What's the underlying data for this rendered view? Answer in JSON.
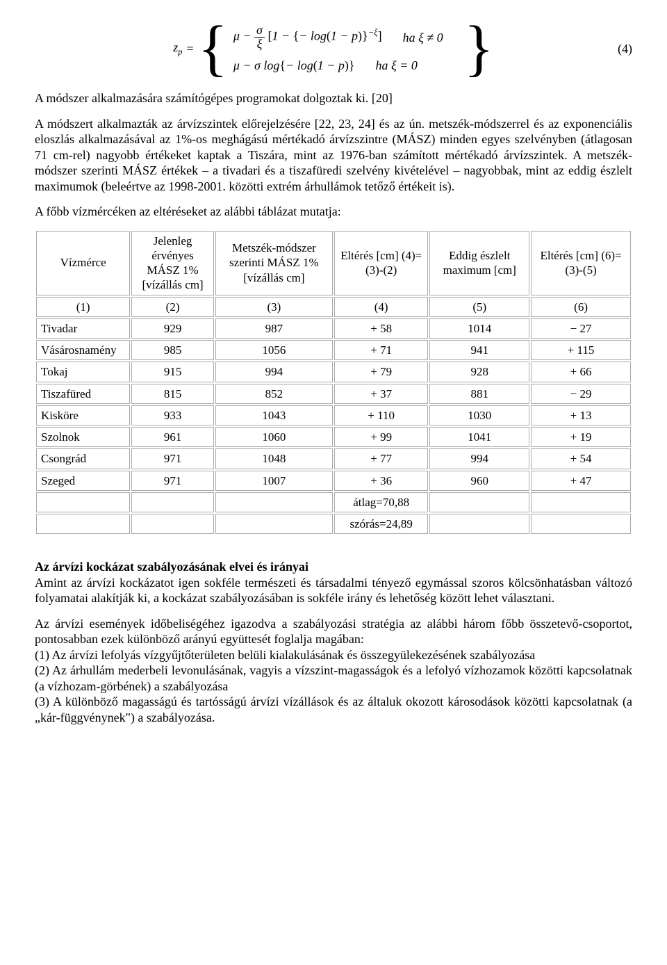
{
  "equation": {
    "lhs_var": "z",
    "lhs_sub": "p",
    "case1_lhs_html": "μ − <span class='frac'><span class='num'>σ</span><span class='den'>ξ</span></span> <span class='upright'>[</span>1 − <span class='upright'>{</span>− log<span class='upright'>(</span>1 − p<span class='upright'>)}</span><span class='sup'>−ξ</span><span class='upright'>]</span>",
    "case1_cond": "ha ξ ≠ 0",
    "case2_lhs_html": "μ − σ log<span class='upright'>{</span>− log<span class='upright'>(</span>1 − p<span class='upright'>)}</span>",
    "case2_cond": "ha ξ = 0",
    "number": "(4)"
  },
  "para1": "A módszer alkalmazására számítógépes programokat dolgoztak ki. [20]",
  "para2": "A módszert alkalmazták az árvízszintek előrejelzésére [22, 23, 24] és az ún. metszék-módszerrel és az exponenciális eloszlás alkalmazásával az 1%-os meghágású mértékadó árvízszintre (MÁSZ) minden egyes szelvényben (átlagosan 71 cm-rel) nagyobb értékeket kaptak a Tiszára, mint az 1976-ban számított mértékadó árvízszintek. A metszék-módszer szerinti MÁSZ értékek – a tivadari és a tiszafüredi szelvény kivételével – nagyobbak, mint az eddig észlelt maximumok (beleértve az 1998-2001. közötti extrém árhullámok tetőző értékeit is).",
  "para3": "A főbb vízmércéken az eltéréseket az alábbi táblázat mutatja:",
  "table": {
    "type": "table",
    "columns": [
      "Vízmérce",
      "Jelenleg érvényes MÁSZ 1% [vízállás cm]",
      "Metszék-módszer szerinti MÁSZ 1% [vízállás cm]",
      "Eltérés [cm] (4)=(3)-(2)",
      "Eddig észlelt maximum [cm]",
      "Eltérés [cm] (6)=(3)-(5)"
    ],
    "index_row": [
      "(1)",
      "(2)",
      "(3)",
      "(4)",
      "(5)",
      "(6)"
    ],
    "rows": [
      [
        "Tivadar",
        "929",
        "987",
        "+ 58",
        "1014",
        "− 27"
      ],
      [
        "Vásárosnamény",
        "985",
        "1056",
        "+ 71",
        "941",
        "+ 115"
      ],
      [
        "Tokaj",
        "915",
        "994",
        "+ 79",
        "928",
        "+ 66"
      ],
      [
        "Tiszafüred",
        "815",
        "852",
        "+ 37",
        "881",
        "− 29"
      ],
      [
        "Kisköre",
        "933",
        "1043",
        "+ 110",
        "1030",
        "+ 13"
      ],
      [
        "Szolnok",
        "961",
        "1060",
        "+ 99",
        "1041",
        "+ 19"
      ],
      [
        "Csongrád",
        "971",
        "1048",
        "+ 77",
        "994",
        "+ 54"
      ],
      [
        "Szeged",
        "971",
        "1007",
        "+ 36",
        "960",
        "+ 47"
      ]
    ],
    "footer_rows": [
      [
        "",
        "",
        "",
        "átlag=70,88",
        "",
        ""
      ],
      [
        "",
        "",
        "",
        "szórás=24,89",
        "",
        ""
      ]
    ],
    "col_widths_pct": [
      16,
      14,
      20,
      16,
      17,
      17
    ],
    "border_color": "#aaaaaa",
    "font_size": 17
  },
  "section_heading": "Az árvízi kockázat szabályozásának elvei és irányai",
  "para4": "Amint az árvízi kockázatot igen sokféle természeti és társadalmi tényező egymással szoros kölcsönhatásban változó folyamatai alakítják ki, a kockázat szabályozásában is sokféle irány és lehetőség között lehet választani.",
  "para5": "Az árvízi események időbeliségéhez igazodva a szabályozási stratégia az alábbi három főbb összetevő-csoportot, pontosabban ezek különböző arányú együttesét foglalja magában:",
  "list": {
    "items": [
      "(1) Az árvízi lefolyás vízgyűjtőterületen belüli kialakulásának és összegyülekezésének szabályozása",
      "(2) Az árhullám mederbeli levonulásának, vagyis a vízszint-magasságok és a lefolyó vízhozamok közötti kapcsolatnak (a vízhozam-görbének) a szabályozása",
      "(3) A különböző magasságú és tartósságú árvízi vízállások és az általuk okozott károsodások közötti kapcsolatnak (a „kár-függvénynek\") a szabályozása."
    ]
  }
}
